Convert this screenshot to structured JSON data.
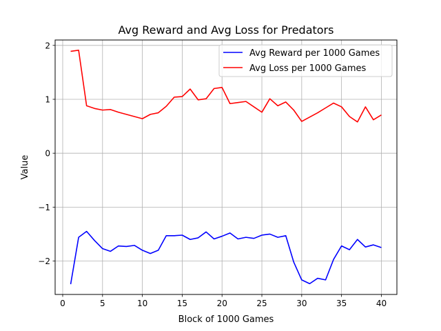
{
  "chart_data": {
    "type": "line",
    "title": "Avg Reward and Avg Loss for Predators",
    "xlabel": "Block of 1000 Games",
    "ylabel": "Value",
    "xlim": [
      -0.95,
      41.95
    ],
    "ylim": [
      -2.62,
      2.1
    ],
    "grid": true,
    "legend_position": "top-right",
    "x_ticks": [
      0,
      5,
      10,
      15,
      20,
      25,
      30,
      35,
      40
    ],
    "x_tick_labels": [
      "0",
      "5",
      "10",
      "15",
      "20",
      "25",
      "30",
      "35",
      "40"
    ],
    "y_ticks": [
      -2,
      -1,
      0,
      1,
      2
    ],
    "y_tick_labels": [
      "−2",
      "−1",
      "0",
      "1",
      "2"
    ],
    "x": [
      1,
      2,
      3,
      4,
      5,
      6,
      7,
      8,
      9,
      10,
      11,
      12,
      13,
      14,
      15,
      16,
      17,
      18,
      19,
      20,
      21,
      22,
      23,
      24,
      25,
      26,
      27,
      28,
      29,
      30,
      31,
      32,
      33,
      34,
      35,
      36,
      37,
      38,
      39,
      40
    ],
    "series": [
      {
        "name": "Avg Reward per 1000 Games",
        "color": "#0000ff",
        "values": [
          -2.43,
          -1.56,
          -1.45,
          -1.62,
          -1.77,
          -1.82,
          -1.72,
          -1.73,
          -1.71,
          -1.8,
          -1.86,
          -1.8,
          -1.53,
          -1.53,
          -1.52,
          -1.6,
          -1.57,
          -1.46,
          -1.59,
          -1.54,
          -1.48,
          -1.59,
          -1.56,
          -1.58,
          -1.52,
          -1.5,
          -1.56,
          -1.53,
          -2.02,
          -2.35,
          -2.42,
          -2.32,
          -2.35,
          -1.97,
          -1.72,
          -1.79,
          -1.6,
          -1.74,
          -1.7,
          -1.75
        ]
      },
      {
        "name": "Avg Loss per 1000 Games",
        "color": "#ff0000",
        "values": [
          1.89,
          1.91,
          0.88,
          0.83,
          0.8,
          0.81,
          0.76,
          0.72,
          0.68,
          0.64,
          0.72,
          0.75,
          0.87,
          1.04,
          1.05,
          1.19,
          0.99,
          1.01,
          1.2,
          1.22,
          0.92,
          0.94,
          0.96,
          0.86,
          0.76,
          1.01,
          0.88,
          0.95,
          0.8,
          0.59,
          0.67,
          0.75,
          0.84,
          0.93,
          0.86,
          0.68,
          0.58,
          0.86,
          0.62,
          0.71
        ]
      }
    ]
  }
}
